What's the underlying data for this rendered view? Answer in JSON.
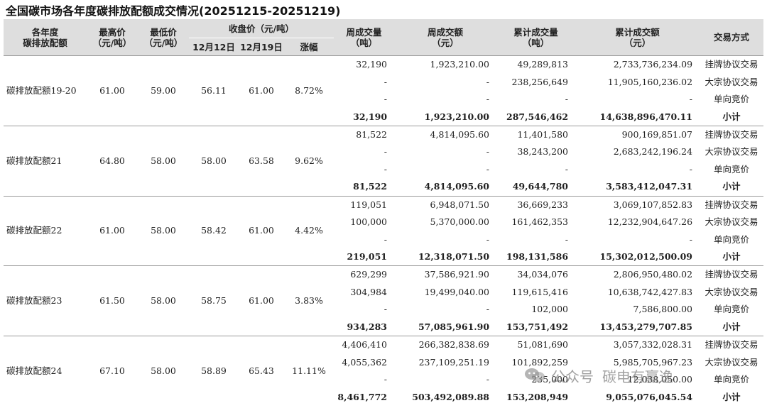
{
  "title": "全国碳市场各年度碳排放配额成交情况(20251215-20251219)",
  "headers": {
    "col1": [
      "各年度",
      "碳排放配额"
    ],
    "high": [
      "最高价",
      "（元/吨）"
    ],
    "low": [
      "最低价",
      "（元/吨）"
    ],
    "close_group": "收盘价（元/吨）",
    "close_dates": [
      "12月12日",
      "12月19日"
    ],
    "change": "涨幅",
    "weekly_volume": [
      "周成交量",
      "（吨）"
    ],
    "weekly_amount": [
      "周成交额",
      "（元）"
    ],
    "cum_volume": [
      "累计成交量",
      "（吨）"
    ],
    "cum_amount": [
      "累计成交额",
      "（元）"
    ],
    "mode": "交易方式"
  },
  "groups": [
    {
      "name": "碳排放配额19-20",
      "high": "61.00",
      "low": "59.00",
      "close_prev": "56.11",
      "close_cur": "61.00",
      "change": "8.72%",
      "rows": [
        {
          "wv": "32,190",
          "wa": "1,923,210.00",
          "cv": "49,289,813",
          "ca": "2,733,736,234.09",
          "mode": "挂牌协议交易"
        },
        {
          "wv": "-",
          "wa": "-",
          "cv": "238,256,649",
          "ca": "11,905,160,236.02",
          "mode": "大宗协议交易"
        },
        {
          "wv": "-",
          "wa": "-",
          "cv": "-",
          "ca": "-",
          "mode": "单向竞价"
        }
      ],
      "subtotal": {
        "wv": "32,190",
        "wa": "1,923,210.00",
        "cv": "287,546,462",
        "ca": "14,638,896,470.11",
        "mode": "小计"
      }
    },
    {
      "name": "碳排放配额21",
      "high": "64.80",
      "low": "58.00",
      "close_prev": "58.00",
      "close_cur": "63.58",
      "change": "9.62%",
      "rows": [
        {
          "wv": "81,522",
          "wa": "4,814,095.60",
          "cv": "11,401,580",
          "ca": "900,169,851.07",
          "mode": "挂牌协议交易"
        },
        {
          "wv": "-",
          "wa": "-",
          "cv": "38,243,200",
          "ca": "2,683,242,196.24",
          "mode": "大宗协议交易"
        },
        {
          "wv": "-",
          "wa": "-",
          "cv": "-",
          "ca": "-",
          "mode": "单向竞价"
        }
      ],
      "subtotal": {
        "wv": "81,522",
        "wa": "4,814,095.60",
        "cv": "49,644,780",
        "ca": "3,583,412,047.31",
        "mode": "小计"
      }
    },
    {
      "name": "碳排放配额22",
      "high": "61.00",
      "low": "58.00",
      "close_prev": "58.42",
      "close_cur": "61.00",
      "change": "4.42%",
      "rows": [
        {
          "wv": "119,051",
          "wa": "6,948,071.50",
          "cv": "36,669,233",
          "ca": "3,069,107,852.83",
          "mode": "挂牌协议交易"
        },
        {
          "wv": "100,000",
          "wa": "5,370,000.00",
          "cv": "161,462,353",
          "ca": "12,232,904,647.26",
          "mode": "大宗协议交易"
        },
        {
          "wv": "-",
          "wa": "-",
          "cv": "-",
          "ca": "-",
          "mode": "单向竞价"
        }
      ],
      "subtotal": {
        "wv": "219,051",
        "wa": "12,318,071.50",
        "cv": "198,131,586",
        "ca": "15,302,012,500.09",
        "mode": "小计"
      }
    },
    {
      "name": "碳排放配额23",
      "high": "61.50",
      "low": "58.00",
      "close_prev": "58.75",
      "close_cur": "61.00",
      "change": "3.83%",
      "rows": [
        {
          "wv": "629,299",
          "wa": "37,586,921.90",
          "cv": "34,034,076",
          "ca": "2,806,950,480.02",
          "mode": "挂牌协议交易"
        },
        {
          "wv": "304,984",
          "wa": "19,499,040.00",
          "cv": "119,615,416",
          "ca": "10,638,742,427.83",
          "mode": "大宗协议交易"
        },
        {
          "wv": "-",
          "wa": "-",
          "cv": "102,000",
          "ca": "7,586,800.00",
          "mode": "单向竞价"
        }
      ],
      "subtotal": {
        "wv": "934,283",
        "wa": "57,085,961.90",
        "cv": "153,751,492",
        "ca": "13,453,279,707.85",
        "mode": "小计"
      }
    },
    {
      "name": "碳排放配额24",
      "high": "67.10",
      "low": "58.00",
      "close_prev": "58.89",
      "close_cur": "65.43",
      "change": "11.11%",
      "rows": [
        {
          "wv": "4,406,410",
          "wa": "266,382,838.69",
          "cv": "51,081,690",
          "ca": "3,057,332,028.31",
          "mode": "挂牌协议交易"
        },
        {
          "wv": "4,055,362",
          "wa": "237,109,251.19",
          "cv": "101,892,259",
          "ca": "5,985,705,967.23",
          "mode": "大宗协议交易"
        },
        {
          "wv": "-",
          "wa": "-",
          "cv": "235,000",
          "ca": "12,038,050.00",
          "mode": "单向竞价"
        }
      ],
      "subtotal": {
        "wv": "8,461,772",
        "wa": "503,492,089.88",
        "cv": "153,208,949",
        "ca": "9,055,076,045.54",
        "mode": "小计"
      }
    }
  ],
  "watermark": {
    "icon": "wechat-icon",
    "text1": "公众号",
    "text2": "碳电有赢逸"
  }
}
